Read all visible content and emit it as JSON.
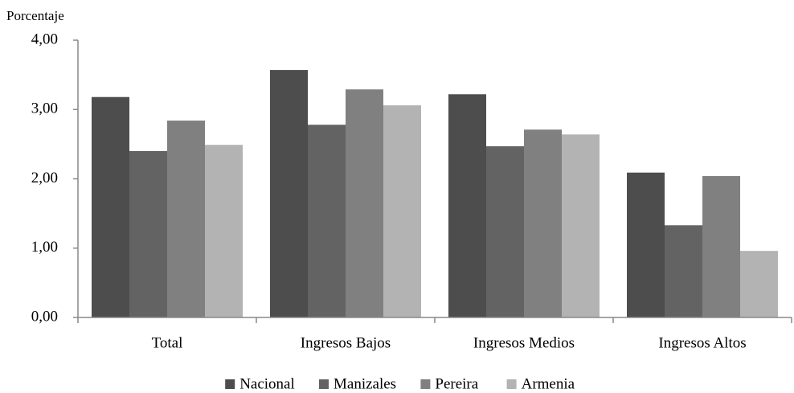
{
  "chart_data": {
    "type": "bar",
    "y_label": "Porcentaje",
    "categories": [
      "Total",
      "Ingresos Bajos",
      "Ingresos Medios",
      "Ingresos Altos"
    ],
    "series": [
      {
        "name": "Nacional",
        "color": "#4d4d4d",
        "values": [
          3.18,
          3.57,
          3.22,
          2.09
        ]
      },
      {
        "name": "Manizales",
        "color": "#636363",
        "values": [
          2.4,
          2.78,
          2.47,
          1.33
        ]
      },
      {
        "name": "Pereira",
        "color": "#808080",
        "values": [
          2.84,
          3.29,
          2.71,
          2.04
        ]
      },
      {
        "name": "Armenia",
        "color": "#b3b3b3",
        "values": [
          2.49,
          3.06,
          2.64,
          0.96
        ]
      }
    ],
    "ylim": [
      0,
      4
    ],
    "yticks": [
      {
        "value": 0,
        "label": "0,00"
      },
      {
        "value": 1,
        "label": "1,00"
      },
      {
        "value": 2,
        "label": "2,00"
      },
      {
        "value": 3,
        "label": "3,00"
      },
      {
        "value": 4,
        "label": "4,00"
      }
    ],
    "grid": false,
    "legend": "bottom"
  }
}
